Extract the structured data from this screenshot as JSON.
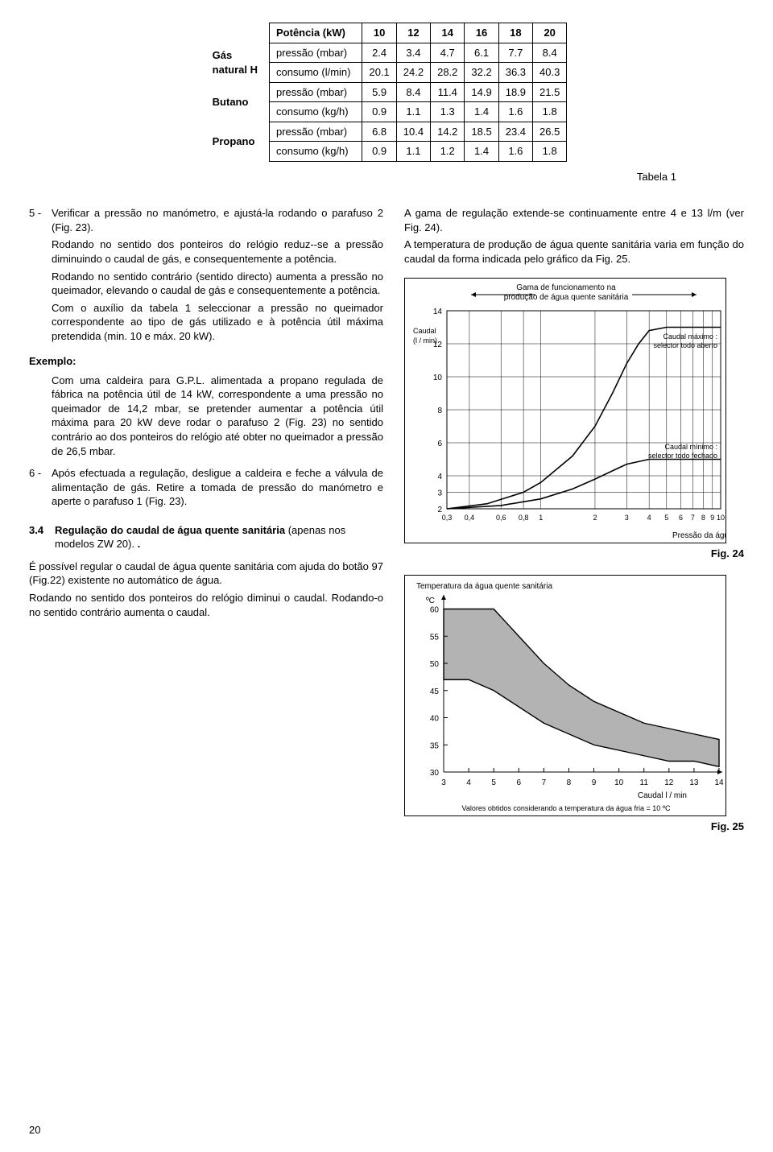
{
  "table": {
    "header_label": "Potência (kW)",
    "cols": [
      "10",
      "12",
      "14",
      "16",
      "18",
      "20"
    ],
    "groups": [
      {
        "name": "Gás",
        "sub": "natural H",
        "rows": [
          {
            "label": "pressão (mbar)",
            "vals": [
              "2.4",
              "3.4",
              "4.7",
              "6.1",
              "7.7",
              "8.4"
            ]
          },
          {
            "label": "consumo (l/min)",
            "vals": [
              "20.1",
              "24.2",
              "28.2",
              "32.2",
              "36.3",
              "40.3"
            ]
          }
        ]
      },
      {
        "name": "Butano",
        "sub": "",
        "rows": [
          {
            "label": "pressão (mbar)",
            "vals": [
              "5.9",
              "8.4",
              "11.4",
              "14.9",
              "18.9",
              "21.5"
            ]
          },
          {
            "label": "consumo (kg/h)",
            "vals": [
              "0.9",
              "1.1",
              "1.3",
              "1.4",
              "1.6",
              "1.8"
            ]
          }
        ]
      },
      {
        "name": "Propano",
        "sub": "",
        "rows": [
          {
            "label": "pressão (mbar)",
            "vals": [
              "6.8",
              "10.4",
              "14.2",
              "18.5",
              "23.4",
              "26.5"
            ]
          },
          {
            "label": "consumo (kg/h)",
            "vals": [
              "0.9",
              "1.1",
              "1.2",
              "1.4",
              "1.6",
              "1.8"
            ]
          }
        ]
      }
    ],
    "caption": "Tabela 1"
  },
  "left": {
    "item5_num": "5 -",
    "item5_p1": "Verificar a pressão no manómetro, e ajustá-la rodando o parafuso 2 (Fig. 23).",
    "item5_p2": "Rodando no sentido dos ponteiros do relógio reduz--se a pressão diminuindo o caudal de gás, e consequentemente a potência.",
    "item5_p3": "Rodando no sentido contrário (sentido directo) aumenta a pressão no queimador, elevando o caudal de gás e consequentemente a potência.",
    "item5_p4": "Com o auxílio da tabela 1 seleccionar a pressão no queimador correspondente ao tipo de gás utilizado e à potência útil máxima pretendida (min. 10 e máx. 20 kW).",
    "exemplo_label": "Exemplo:",
    "exemplo_body": "Com uma caldeira para G.P.L. alimentada a propano regulada de fábrica na potência útil de 14 kW, correspondente a uma pressão no queimador de 14,2 mbar, se pretender aumentar a potência útil máxima para 20 kW deve rodar o parafuso 2 (Fig. 23) no sentido contrário ao dos ponteiros do relógio até obter no queimador a pressão de 26,5 mbar.",
    "item6_num": "6 -",
    "item6_body": "Após efectuada a regulação, desligue a caldeira e feche a válvula de alimentação de gás. Retire a tomada de pressão do manómetro e aperte o parafuso 1 (Fig. 23).",
    "sec34_num": "3.4",
    "sec34_title": "Regulação do caudal de água quente sanitária",
    "sec34_sub": "(apenas nos modelos ZW 20).",
    "sec34_p1": "É possível regular o caudal de água quente sanitária com ajuda do botão 97 (Fig.22) existente no automático de água.",
    "sec34_p2": "Rodando no sentido dos ponteiros do relógio diminui o caudal. Rodando-o no sentido contrário aumenta o caudal."
  },
  "right": {
    "intro_p1": "A gama de regulação extende-se continuamente entre 4 e 13 l/m (ver Fig. 24).",
    "intro_p2": "A temperatura de produção de água quente sanitária varia em função do caudal da forma indicada pelo gráfico da Fig. 25."
  },
  "chart1": {
    "fig_label": "Fig. 24",
    "y_label": "Caudal\n(l / min)",
    "y_ticks": [
      "2",
      "3",
      "4",
      "6",
      "8",
      "10",
      "12",
      "14"
    ],
    "x_ticks": [
      "0,3",
      "0,4",
      "0,6",
      "0,8",
      "1",
      "2",
      "3",
      "4",
      "5",
      "6",
      "7",
      "8",
      "9",
      "10"
    ],
    "x_label": "Pressão da água   ( bar )",
    "title": "Gama de funcionamento na\nprodução de água quente sanitária",
    "annot_max": "Caudal  máximo :\nselector todo aberto",
    "annot_min": "Caudal  mínimo :\nselector todo fechado",
    "grid_color": "#000000",
    "line_width": 1.6,
    "curve_max_pts": [
      [
        0.3,
        2
      ],
      [
        0.5,
        2.3
      ],
      [
        0.8,
        3.0
      ],
      [
        1,
        3.6
      ],
      [
        1.5,
        5.2
      ],
      [
        2,
        7.0
      ],
      [
        2.5,
        9.0
      ],
      [
        3,
        10.8
      ],
      [
        3.5,
        12.0
      ],
      [
        4,
        12.8
      ],
      [
        5,
        13.0
      ],
      [
        7,
        13.0
      ],
      [
        10,
        13.0
      ]
    ],
    "curve_min_pts": [
      [
        0.3,
        2
      ],
      [
        0.6,
        2.2
      ],
      [
        1,
        2.6
      ],
      [
        1.5,
        3.2
      ],
      [
        2,
        3.8
      ],
      [
        2.5,
        4.3
      ],
      [
        3,
        4.7
      ],
      [
        4,
        5.0
      ],
      [
        5,
        5.0
      ],
      [
        7,
        5.0
      ],
      [
        10,
        5.0
      ]
    ],
    "xlim": [
      0.3,
      10
    ],
    "ylim": [
      2,
      14
    ],
    "bg": "#ffffff"
  },
  "chart2": {
    "fig_label": "Fig. 25",
    "title": "Temperatura da água quente sanitária",
    "y_unit": "ºC",
    "y_ticks": [
      "30",
      "35",
      "40",
      "45",
      "50",
      "55",
      "60"
    ],
    "x_ticks": [
      "3",
      "4",
      "5",
      "6",
      "7",
      "8",
      "9",
      "10",
      "11",
      "12",
      "13",
      "14"
    ],
    "x_label": "Caudal  l / min",
    "note": "Valores obtidos considerando a  temperatura da água fria  =  10 ºC",
    "band_color": "#b3b3b3",
    "upper_pts": [
      [
        3,
        60
      ],
      [
        5,
        60
      ],
      [
        6,
        55
      ],
      [
        7,
        50
      ],
      [
        8,
        46
      ],
      [
        9,
        43
      ],
      [
        10,
        41
      ],
      [
        11,
        39
      ],
      [
        12,
        38
      ],
      [
        13,
        37
      ],
      [
        14,
        36
      ]
    ],
    "lower_pts": [
      [
        3,
        47
      ],
      [
        4,
        47
      ],
      [
        5,
        45
      ],
      [
        6,
        42
      ],
      [
        7,
        39
      ],
      [
        8,
        37
      ],
      [
        9,
        35
      ],
      [
        10,
        34
      ],
      [
        11,
        33
      ],
      [
        12,
        32
      ],
      [
        13,
        32
      ],
      [
        14,
        31
      ]
    ],
    "xlim": [
      3,
      14
    ],
    "ylim": [
      30,
      62
    ],
    "line_width": 1.4
  },
  "page_number": "20"
}
